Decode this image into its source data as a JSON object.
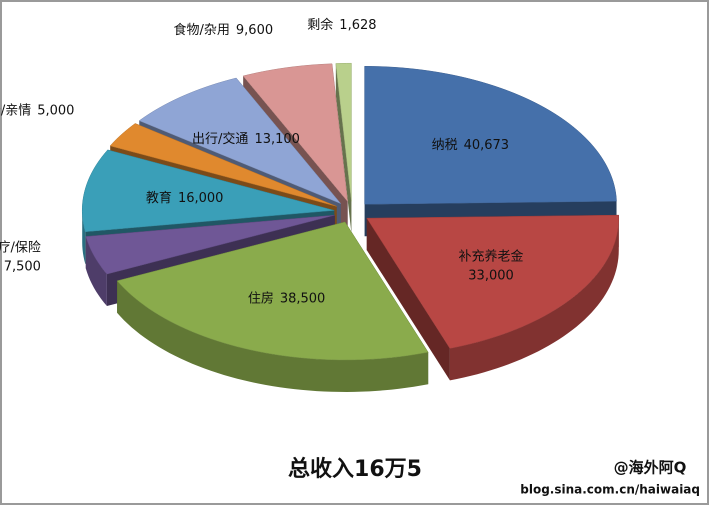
{
  "chart_data": {
    "type": "pie",
    "title": "总收入16万5",
    "categories": [
      "纳税",
      "补充养老金",
      "住房",
      "医疗/保险",
      "教育",
      "父母/亲情",
      "出行/交通",
      "食物/杂用",
      "剩余"
    ],
    "values": [
      40673,
      33000,
      38500,
      7500,
      16000,
      5000,
      13100,
      9600,
      1628
    ],
    "value_labels": [
      "40,673",
      "33,000",
      "38,500",
      "7,500",
      "16,000",
      "5,000",
      "13,100",
      "9,600",
      "1,628"
    ],
    "colors": [
      "#4570aa",
      "#b84744",
      "#8aab4c",
      "#6f5796",
      "#3a9fb8",
      "#e0892e",
      "#8fa5d5",
      "#d99694",
      "#b9d08c"
    ],
    "watermark": "@海外阿Q",
    "source": "blog.sina.com.cn/haiwaiaq"
  }
}
